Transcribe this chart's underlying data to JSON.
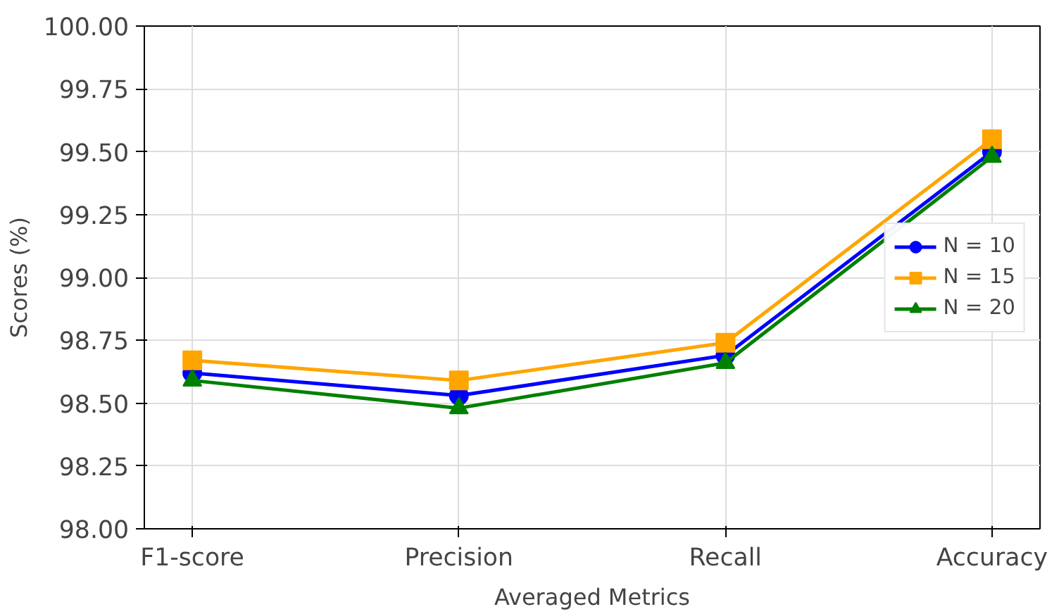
{
  "chart_data": {
    "type": "line",
    "xlabel": "Averaged Metrics",
    "ylabel": "Scores (%)",
    "categories": [
      "F1-score",
      "Precision",
      "Recall",
      "Accuracy"
    ],
    "ylim": [
      98.0,
      100.0
    ],
    "yticks": [
      {
        "value": 98.0,
        "label": "98.00"
      },
      {
        "value": 98.25,
        "label": "98.25"
      },
      {
        "value": 98.5,
        "label": "98.50"
      },
      {
        "value": 98.75,
        "label": "98.75"
      },
      {
        "value": 99.0,
        "label": "99.00"
      },
      {
        "value": 99.25,
        "label": "99.25"
      },
      {
        "value": 99.5,
        "label": "99.50"
      },
      {
        "value": 99.75,
        "label": "99.75"
      },
      {
        "value": 100.0,
        "label": "100.00"
      }
    ],
    "grid": true,
    "legend": "right",
    "line_style": "solid",
    "series": [
      {
        "name": "N = 10",
        "color": "#0000ff",
        "marker": "circle",
        "values": [
          98.62,
          98.53,
          98.69,
          99.5
        ]
      },
      {
        "name": "N = 15",
        "color": "#ffa500",
        "marker": "square",
        "values": [
          98.67,
          98.59,
          98.74,
          99.55
        ]
      },
      {
        "name": "N = 20",
        "color": "#008000",
        "marker": "triangle",
        "values": [
          98.59,
          98.48,
          98.66,
          99.48
        ]
      }
    ]
  }
}
